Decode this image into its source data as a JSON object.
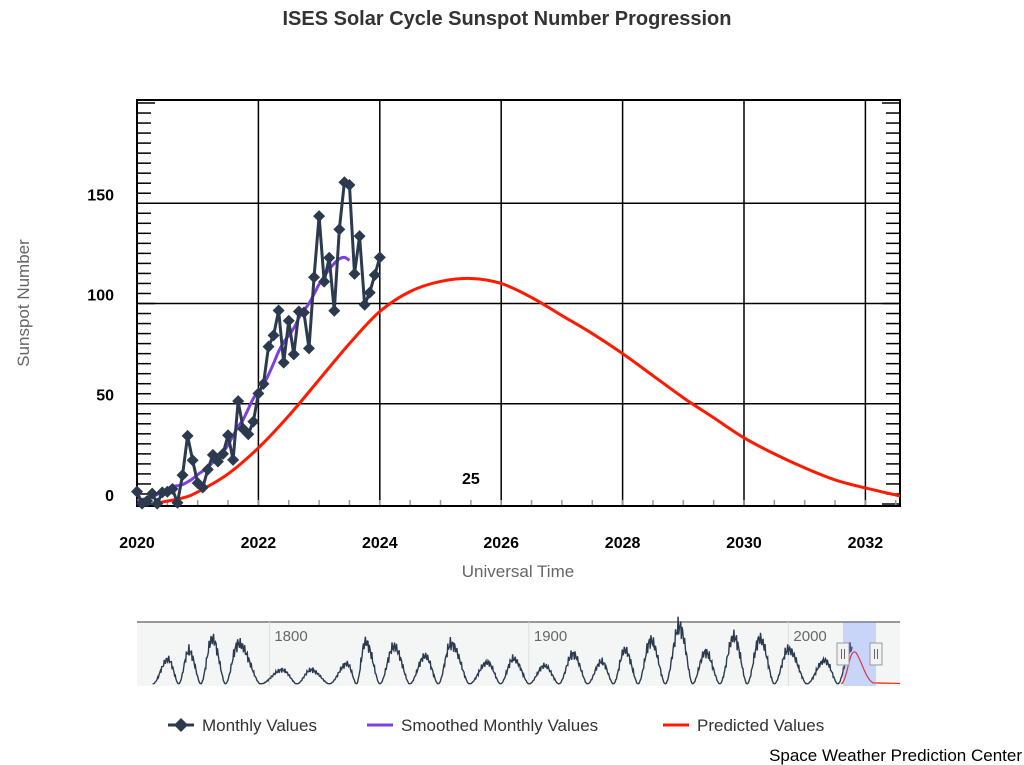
{
  "chart_data": {
    "type": "line",
    "title": "ISES Solar Cycle Sunspot Number Progression",
    "xlabel": "Universal Time",
    "ylabel": "Sunspot Number",
    "xlim": [
      2020.0,
      2032.57
    ],
    "ylim": [
      -1,
      201.5
    ],
    "x_ticks": [
      "2020",
      "2022",
      "2024",
      "2026",
      "2028",
      "2030",
      "2032"
    ],
    "y_ticks": [
      "0",
      "50",
      "100",
      "150"
    ],
    "grid": true,
    "legend_position": "bottom",
    "annotation": "25",
    "annotation_at": {
      "x": 2025.5,
      "y": 12
    },
    "series": [
      {
        "name": "Monthly Values",
        "color": "#2b3a4e",
        "marker": "diamond",
        "start": "2020-01",
        "step": "month",
        "values": [
          6.2,
          0.2,
          1.5,
          5.2,
          0.2,
          5.8,
          6.1,
          7.5,
          0.6,
          14.4,
          34.0,
          21.8,
          10.4,
          8.2,
          17.2,
          24.5,
          21.2,
          25.0,
          34.3,
          22.0,
          51.3,
          37.4,
          34.8,
          41.1,
          55.1,
          59.9,
          78.5,
          84.1,
          96.5,
          70.5,
          91.4,
          74.6,
          96.0,
          95.5,
          77.6,
          113.1,
          143.6,
          110.9,
          122.8,
          96.4,
          137.0,
          160.5,
          159.1,
          114.8,
          133.6,
          99.4,
          105.4,
          114.2,
          123.0
        ]
      },
      {
        "name": "Smoothed Monthly Values",
        "color": "#7b3fe4",
        "start": "2020-01",
        "step": "month",
        "values": [
          1.8,
          2.2,
          2.9,
          3.7,
          4.7,
          6.2,
          7.6,
          8.7,
          9.1,
          9.7,
          11.0,
          12.6,
          14.7,
          16.4,
          18.3,
          20.8,
          23.4,
          25.9,
          29.4,
          34.2,
          38.6,
          42.2,
          47.4,
          52.6,
          56.0,
          59.5,
          64.5,
          70.1,
          76.1,
          80.7,
          84.0,
          87.7,
          92.8,
          96.6,
          100.0,
          104.7,
          109.6,
          113.5,
          117.1,
          120.0,
          122.3,
          123.0,
          121.5
        ]
      },
      {
        "name": "Predicted Values",
        "color": "#ff1a00",
        "x": [
          2020.33,
          2020.75,
          2021.0,
          2021.5,
          2022.0,
          2022.5,
          2023.0,
          2023.5,
          2024.0,
          2024.5,
          2025.0,
          2025.5,
          2026.0,
          2026.5,
          2027.0,
          2027.5,
          2028.0,
          2028.5,
          2029.0,
          2029.5,
          2030.0,
          2030.5,
          2031.0,
          2031.5,
          2032.0,
          2032.57
        ],
        "values": [
          0.5,
          3,
          6,
          15,
          28,
          44,
          62,
          80,
          96,
          106,
          111,
          112.5,
          110,
          103,
          94,
          85,
          75,
          64,
          53,
          43,
          33,
          25,
          18,
          12,
          8,
          4
        ]
      }
    ],
    "navigator": {
      "x_ticks": [
        "1800",
        "1900",
        "2000"
      ],
      "xlim": [
        1749,
        2043
      ],
      "cycle_peaks": [
        [
          1761,
          86
        ],
        [
          1769,
          116
        ],
        [
          1778,
          158
        ],
        [
          1788,
          141
        ],
        [
          1805,
          49
        ],
        [
          1816,
          49
        ],
        [
          1830,
          71
        ],
        [
          1837,
          147
        ],
        [
          1848,
          131
        ],
        [
          1860,
          98
        ],
        [
          1870,
          140
        ],
        [
          1884,
          75
        ],
        [
          1894,
          88
        ],
        [
          1906,
          64
        ],
        [
          1917,
          105
        ],
        [
          1928,
          78
        ],
        [
          1937,
          119
        ],
        [
          1947,
          152
        ],
        [
          1958,
          201
        ],
        [
          1968,
          111
        ],
        [
          1979,
          165
        ],
        [
          1989,
          159
        ],
        [
          2000,
          121
        ],
        [
          2014,
          82
        ],
        [
          2024,
          125
        ]
      ],
      "selection": [
        2020.0,
        2032.57
      ]
    }
  },
  "credit": "Space Weather Prediction Center"
}
